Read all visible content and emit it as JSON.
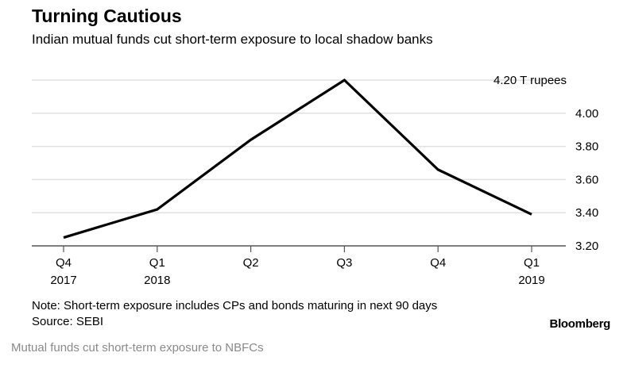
{
  "chart_data": {
    "type": "line",
    "title": "Turning Cautious",
    "subtitle": "Indian mutual funds cut short-term exposure to local shadow banks",
    "categories": [
      [
        "Q4",
        "2017"
      ],
      [
        "Q1",
        "2018"
      ],
      [
        "Q2",
        ""
      ],
      [
        "Q3",
        ""
      ],
      [
        "Q4",
        ""
      ],
      [
        "Q1",
        "2019"
      ]
    ],
    "series": [
      {
        "name": "Short-term exposure",
        "values": [
          3.25,
          3.42,
          3.84,
          4.2,
          3.66,
          3.39
        ]
      }
    ],
    "yticks": [
      3.2,
      3.4,
      3.6,
      3.8,
      4.0,
      4.2
    ],
    "ytick_labels": [
      "3.20",
      "3.40",
      "3.60",
      "3.80",
      "4.00",
      "4.20 T rupees"
    ],
    "ylim": [
      3.2,
      4.2
    ],
    "ylabel": "T rupees",
    "grid": true,
    "line_color": "#000000",
    "grid_color": "#e0e0e0"
  },
  "note": "Note: Short-term exposure includes CPs and bonds maturing in next 90 days",
  "source": "Source: SEBI",
  "brand": "Bloomberg",
  "caption": "Mutual funds cut short-term exposure to NBFCs"
}
